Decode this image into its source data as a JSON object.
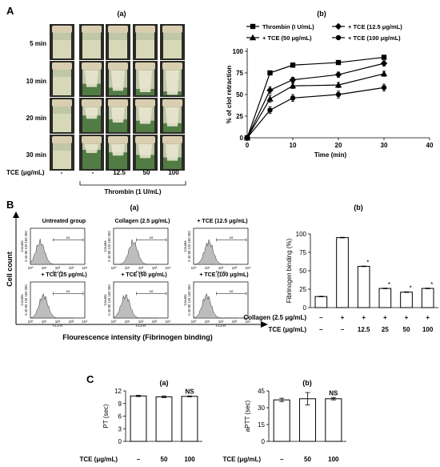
{
  "panelA": {
    "letter": "A",
    "sub_a": "(a)",
    "sub_b": "(b)",
    "rows": [
      "5 min",
      "10 min",
      "20 min",
      "30 min"
    ],
    "tce_label": "TCE  (μg/mL)",
    "tce_values": [
      "-",
      "-",
      "12.5",
      "50",
      "100"
    ],
    "thrombin_label": "Thrombin (1 U/mL)",
    "tube_fill_color": "#3d6f32",
    "tube_cap_color": "#d9ceb0"
  },
  "panelB": {
    "letter": "B",
    "sub_a": "(a)",
    "sub_b": "(b)",
    "ylabel": "Cell count",
    "xlabel": "Flourescence intensity (Fibrinogen binding)",
    "histograms": [
      {
        "title": "Untreated group"
      },
      {
        "title": "Collagen (2.5 μg/mL)"
      },
      {
        "title": "+ TCE (12.5 μg/mL)"
      },
      {
        "title": "+ TCE (25 μg/mL)"
      },
      {
        "title": "+ TCE (50 μg/mL)"
      },
      {
        "title": "+ TCE (100 μg/mL)"
      }
    ],
    "hist_axis_label": "FL1-H",
    "hist_y_label": "Counts",
    "hist_y_ticks": [
      "0",
      "40",
      "80",
      "120",
      "160",
      "200"
    ],
    "hist_x_ticks": [
      "10⁰",
      "10¹",
      "10²",
      "10³",
      "10⁴"
    ],
    "gate_label": "M1",
    "collagen_label": "Collagen (2.5 μg/mL)",
    "collagen_values": [
      "–",
      "+",
      "+",
      "+",
      "+",
      "+"
    ],
    "tce_label": "TCE (μg/mL)",
    "tce_values": [
      "–",
      "–",
      "12.5",
      "25",
      "50",
      "100"
    ]
  },
  "panelC": {
    "letter": "C",
    "sub_a": "(a)",
    "sub_b": "(b)",
    "tce_label": "TCE (μg/mL)",
    "tce_values": [
      "–",
      "50",
      "100"
    ]
  },
  "chart_data": [
    {
      "id": "A_b",
      "type": "line",
      "xlabel": "Time (min)",
      "ylabel": "% of clot retraction",
      "xlim": [
        0,
        40
      ],
      "ylim": [
        0,
        100
      ],
      "xticks": [
        0,
        10,
        20,
        30,
        40
      ],
      "yticks": [
        0,
        25,
        50,
        75,
        100
      ],
      "x": [
        0,
        5,
        10,
        20,
        30
      ],
      "legend_position": "top",
      "series": [
        {
          "name": "Thrombin (I U/mL)",
          "marker": "square",
          "values": [
            0,
            75,
            84,
            87,
            93
          ],
          "errors": [
            0,
            2,
            2,
            2,
            2
          ]
        },
        {
          "name": "+ TCE (12.5 μg/mL)",
          "marker": "diamond",
          "values": [
            0,
            55,
            67,
            73,
            86
          ],
          "errors": [
            0,
            4,
            3,
            3,
            3
          ]
        },
        {
          "name": "+ TCE (50 μg/mL)",
          "marker": "triangle",
          "values": [
            0,
            45,
            60,
            61,
            74
          ],
          "errors": [
            0,
            4,
            3,
            3,
            3
          ]
        },
        {
          "name": "+ TCE (100 μg/mL)",
          "marker": "circle",
          "values": [
            0,
            32,
            46,
            50,
            58
          ],
          "errors": [
            0,
            4,
            4,
            4,
            4
          ]
        }
      ]
    },
    {
      "id": "B_b",
      "type": "bar",
      "ylabel": "Fibrinogen binding (%)",
      "ylim": [
        0,
        100
      ],
      "yticks": [
        0,
        25,
        50,
        75,
        100
      ],
      "values": [
        15,
        95,
        56,
        26,
        21,
        26
      ],
      "significant": [
        false,
        false,
        true,
        true,
        true,
        true
      ],
      "significance_mark": "*"
    },
    {
      "id": "C_a",
      "type": "bar",
      "ylabel": "PT (sec)",
      "ylim": [
        0,
        12
      ],
      "yticks": [
        0,
        3,
        6,
        9,
        12
      ],
      "values": [
        10.8,
        10.6,
        10.7
      ],
      "errors": [
        0.15,
        0.2,
        0.1
      ],
      "annotations": [
        "",
        "",
        "NS"
      ]
    },
    {
      "id": "C_b",
      "type": "bar",
      "ylabel": "aPTT (sec)",
      "ylim": [
        0,
        45
      ],
      "yticks": [
        0,
        15,
        30,
        45
      ],
      "values": [
        37,
        38,
        38
      ],
      "errors": [
        1.5,
        5.5,
        1
      ],
      "annotations": [
        "",
        "",
        "NS"
      ]
    }
  ]
}
